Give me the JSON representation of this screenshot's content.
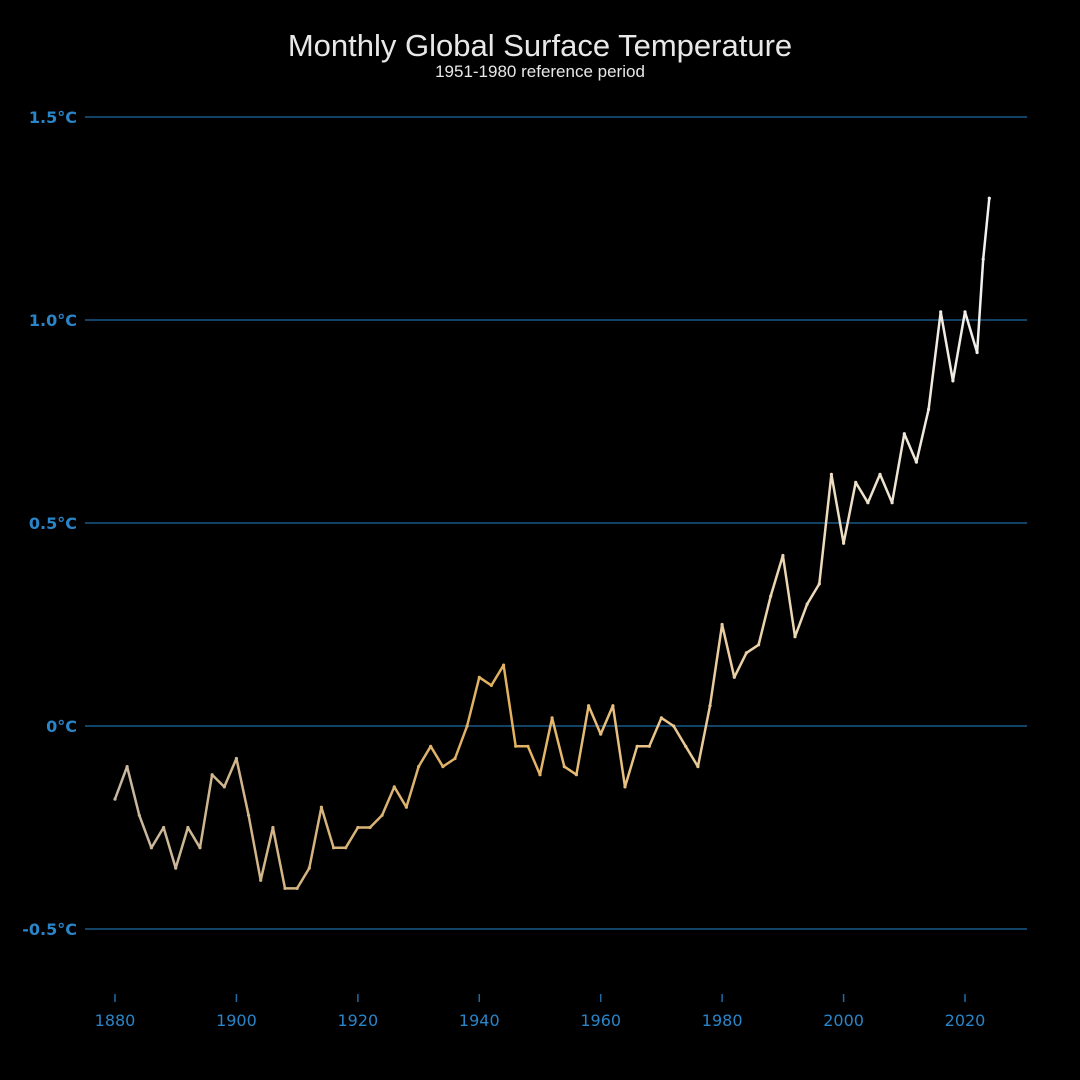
{
  "chart_data": {
    "type": "line",
    "title": "Monthly Global Surface Temperature",
    "subtitle": "1951-1980 reference period",
    "xlabel": "",
    "ylabel": "",
    "xlim": [
      1878,
      2030
    ],
    "ylim": [
      -0.65,
      1.5
    ],
    "x_ticks": [
      {
        "value": 1880,
        "label": "1880"
      },
      {
        "value": 1900,
        "label": "1900"
      },
      {
        "value": 1920,
        "label": "1920"
      },
      {
        "value": 1940,
        "label": "1940"
      },
      {
        "value": 1960,
        "label": "1960"
      },
      {
        "value": 1980,
        "label": "1980"
      },
      {
        "value": 2000,
        "label": "2000"
      },
      {
        "value": 2020,
        "label": "2020"
      }
    ],
    "y_ticks": [
      {
        "value": 1.5,
        "label": "1.5°C"
      },
      {
        "value": 1.0,
        "label": "1.0°C"
      },
      {
        "value": 0.5,
        "label": "0.5°C"
      },
      {
        "value": 0,
        "label": "0°C"
      },
      {
        "value": -0.5,
        "label": "-0.5°C"
      }
    ],
    "grid": "horizontal",
    "colors": {
      "background": "#000000",
      "grid": "#1f6aa5",
      "tick_labels": "#2a84c8",
      "title": "#e8e8e8",
      "line_early": "#c9b8a0",
      "line_mid": "#e3b15e",
      "line_late": "#f2f2f2"
    },
    "series": [
      {
        "x": [
          1880,
          1882,
          1884,
          1886,
          1888,
          1890,
          1892,
          1894,
          1896,
          1898,
          1900,
          1902,
          1904,
          1906,
          1908,
          1910,
          1912,
          1914,
          1916,
          1918,
          1920,
          1922,
          1924,
          1926,
          1928,
          1930,
          1932,
          1934,
          1936,
          1938,
          1940,
          1942,
          1944,
          1946,
          1948,
          1950,
          1952,
          1954,
          1956,
          1958,
          1960,
          1962,
          1964,
          1966,
          1968,
          1970,
          1972,
          1974,
          1976,
          1978,
          1980,
          1982,
          1984,
          1986,
          1988,
          1990,
          1992,
          1994,
          1996,
          1998,
          2000,
          2002,
          2004,
          2006,
          2008,
          2010,
          2012,
          2014,
          2016,
          2018,
          2020,
          2022,
          2023,
          2024
        ],
        "values": [
          -0.18,
          -0.1,
          -0.22,
          -0.3,
          -0.25,
          -0.35,
          -0.25,
          -0.3,
          -0.12,
          -0.15,
          -0.08,
          -0.22,
          -0.38,
          -0.25,
          -0.4,
          -0.4,
          -0.35,
          -0.2,
          -0.3,
          -0.3,
          -0.25,
          -0.25,
          -0.22,
          -0.15,
          -0.2,
          -0.1,
          -0.05,
          -0.1,
          -0.08,
          0.0,
          0.12,
          0.1,
          0.15,
          -0.05,
          -0.05,
          -0.12,
          0.02,
          -0.1,
          -0.12,
          0.05,
          -0.02,
          0.05,
          -0.15,
          -0.05,
          -0.05,
          0.02,
          0.0,
          -0.05,
          -0.1,
          0.05,
          0.25,
          0.12,
          0.18,
          0.2,
          0.32,
          0.42,
          0.22,
          0.3,
          0.35,
          0.62,
          0.45,
          0.6,
          0.55,
          0.62,
          0.55,
          0.72,
          0.65,
          0.78,
          1.02,
          0.85,
          1.02,
          0.92,
          1.15,
          1.3
        ]
      }
    ]
  }
}
